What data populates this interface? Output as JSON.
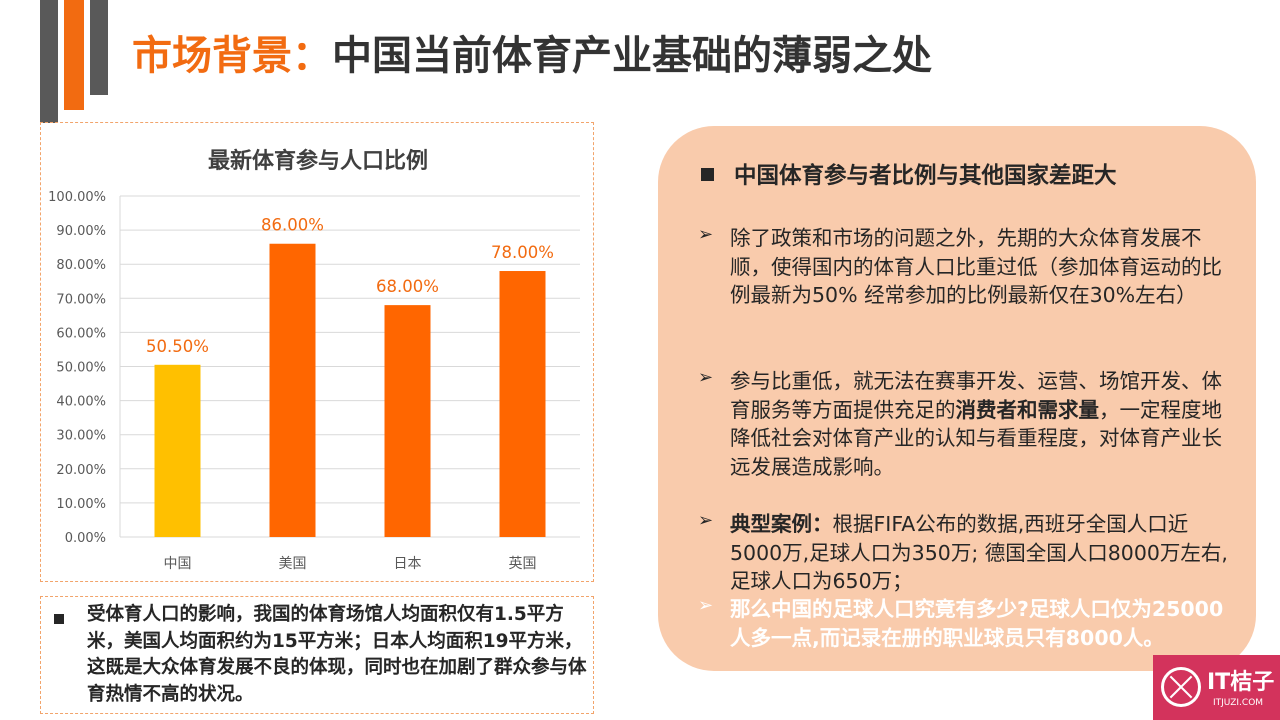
{
  "header": {
    "title_accent": "市场背景：",
    "title_main": "中国当前体育产业基础的薄弱之处"
  },
  "chart_data": {
    "type": "bar",
    "title": "最新体育参与人口比例",
    "categories": [
      "中国",
      "美国",
      "日本",
      "英国"
    ],
    "values": [
      50.5,
      86.0,
      68.0,
      78.0
    ],
    "value_labels": [
      "50.50%",
      "86.00%",
      "68.00%",
      "78.00%"
    ],
    "bar_colors": [
      "#ffc000",
      "#ff6600",
      "#ff6600",
      "#ff6600"
    ],
    "label_color": "#f26b11",
    "ylim": [
      0,
      100
    ],
    "yticks": [
      "0.00%",
      "10.00%",
      "20.00%",
      "30.00%",
      "40.00%",
      "50.00%",
      "60.00%",
      "70.00%",
      "80.00%",
      "90.00%",
      "100.00%"
    ],
    "grid": true
  },
  "note": {
    "text": "受体育人口的影响，我国的体育场馆人均面积仅有1.5平方米，美国人均面积约为15平方米；日本人均面积19平方米，这既是大众体育发展不良的体现，同时也在加剧了群众参与体育热情不高的状况。"
  },
  "panel": {
    "heading": "中国体育参与者比例与其他国家差距大",
    "item1": "除了政策和市场的问题之外，先期的大众体育发展不顺，使得国内的体育人口比重过低（参加体育运动的比例最新为50% 经常参加的比例最新仅在30%左右）",
    "item2_a": "参与比重低，就无法在赛事开发、运营、场馆开发、体育服务等方面提供充足的",
    "item2_strong": "消费者和需求量",
    "item2_b": "，一定程度地降低社会对体育产业的认知与看重程度，对体育产业长远发展造成影响。",
    "item3_strong": "典型案例：",
    "item3_body": "根据FIFA公布的数据,西班牙全国人口近5000万,足球人口为350万; 德国全国人口8000万左右,足球人口为650万；",
    "item4": "那么中国的足球人口究竟有多少?足球人口仅为25000人多一点,而记录在册的职业球员只有8000人。",
    "arrow": "➢"
  },
  "logo": {
    "name": "IT桔子",
    "url": "ITJUZI.COM"
  }
}
